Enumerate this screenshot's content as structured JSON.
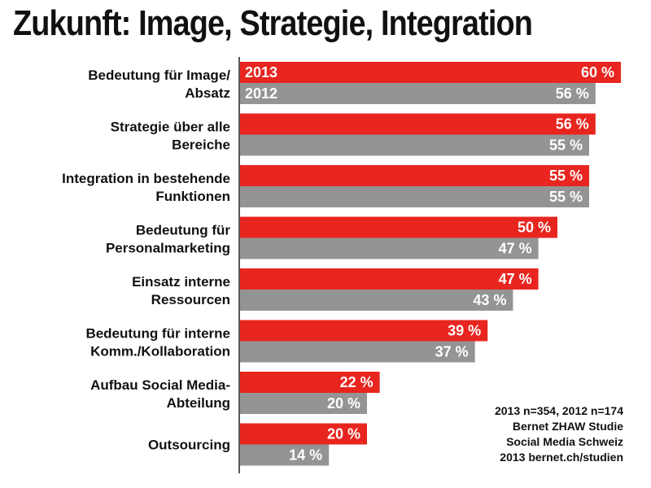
{
  "title": "Zukunft: Image, Strategie, Integration",
  "notes": [
    "2013 n=354, 2012 n=174",
    "Bernet ZHAW Studie",
    "Social Media Schweiz",
    "2013 bernet.ch/studien"
  ],
  "chart_data": {
    "type": "bar",
    "orientation": "horizontal",
    "title": "Zukunft: Image, Strategie, Integration",
    "categories": [
      "Bedeutung für Image/\nAbsatz",
      "Strategie über alle\nBereiche",
      "Integration in bestehende\nFunktionen",
      "Bedeutung für\nPersonalmarketing",
      "Einsatz interne\nRessourcen",
      "Bedeutung für interne\nKomm./Kollaboration",
      "Aufbau Social Media-\nAbteilung",
      "Outsourcing"
    ],
    "series": [
      {
        "name": "2013",
        "color": "#e8251f",
        "values": [
          60,
          56,
          55,
          50,
          47,
          39,
          22,
          20
        ]
      },
      {
        "name": "2012",
        "color": "#949494",
        "values": [
          56,
          55,
          55,
          47,
          43,
          37,
          20,
          14
        ]
      }
    ],
    "value_suffix": " %",
    "xlim": [
      0,
      100
    ],
    "legend": "inside-first-bar",
    "grid": false
  }
}
